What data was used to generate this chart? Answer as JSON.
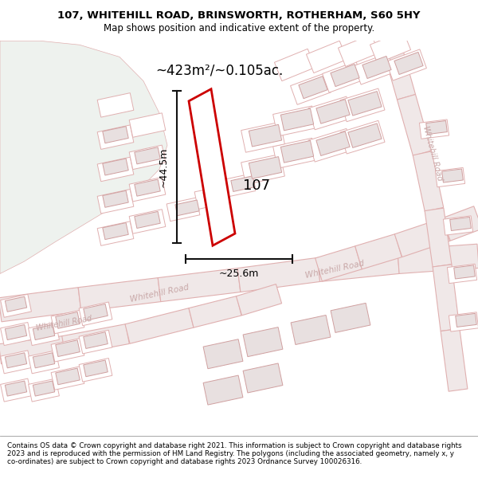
{
  "title_line1": "107, WHITEHILL ROAD, BRINSWORTH, ROTHERHAM, S60 5HY",
  "title_line2": "Map shows position and indicative extent of the property.",
  "area_text": "~423m²/~0.105ac.",
  "dim_width": "~25.6m",
  "dim_height": "~44.5m",
  "label_107": "107",
  "bg_color": "#ffffff",
  "map_bg_color": "#f8f4f4",
  "green_color": "#eef2ee",
  "road_fill_color": "#f5eded",
  "road_line_color": "#e0b0b0",
  "building_fill_color": "#e8e0e0",
  "building_edge_color": "#d0a0a0",
  "plot_line_color": "#cc0000",
  "plot_fill_color": "#ffffff",
  "dim_color": "#111111",
  "road_label_color": "#c8a8a8",
  "footer_text": "Contains OS data © Crown copyright and database right 2021. This information is subject to Crown copyright and database rights 2023 and is reproduced with the permission of HM Land Registry. The polygons (including the associated geometry, namely x, y co-ordinates) are subject to Crown copyright and database rights 2023 Ordnance Survey 100026316.",
  "figsize": [
    6.0,
    6.25
  ],
  "dpi": 100,
  "map_xlim": [
    0,
    600
  ],
  "map_ylim": [
    0,
    490
  ]
}
